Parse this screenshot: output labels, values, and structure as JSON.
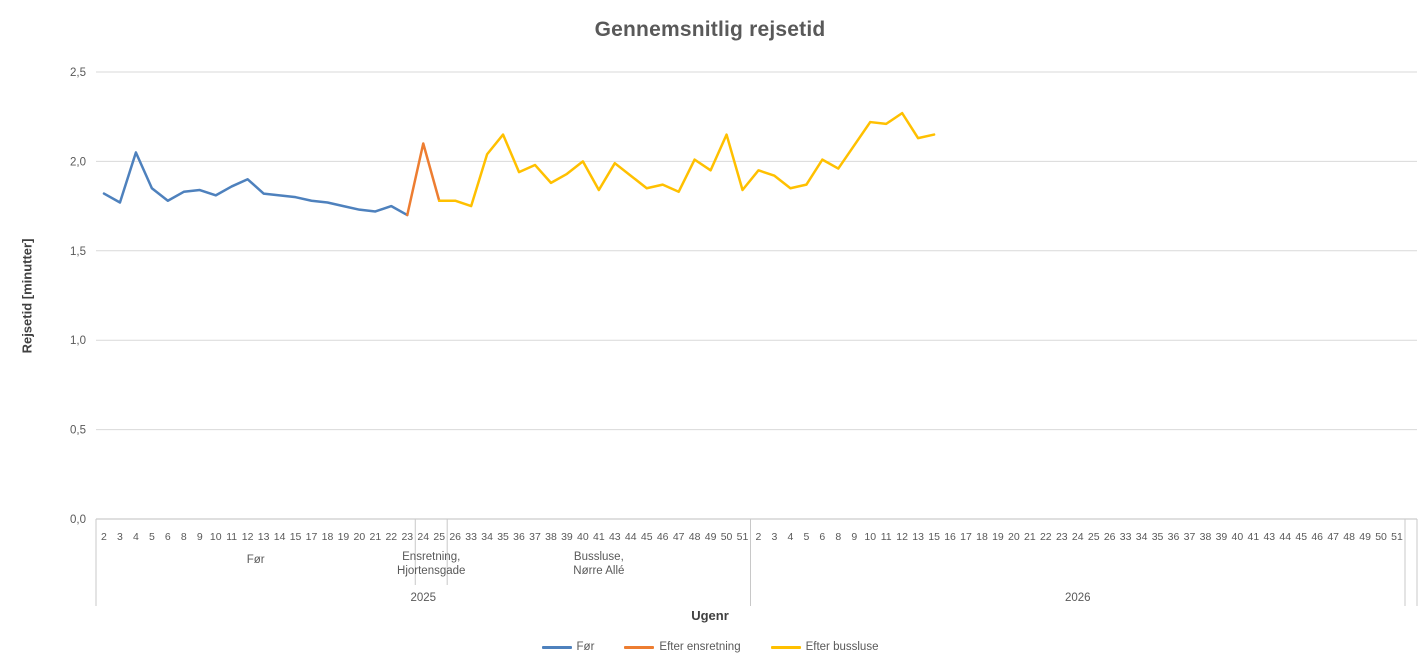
{
  "chart_data": {
    "type": "line",
    "title": "Gennemsnitlig rejsetid",
    "xlabel": "Ugenr",
    "ylabel": "Rejsetid [minutter]",
    "ylim": [
      0,
      2.5
    ],
    "ytick_values": [
      0,
      0.5,
      1.0,
      1.5,
      2.0,
      2.5
    ],
    "ytick_labels": [
      "0,0",
      "0,5",
      "1,0",
      "1,5",
      "2,0",
      "2,5"
    ],
    "grid": true,
    "legend_position": "bottom",
    "categories": [
      2,
      3,
      4,
      5,
      6,
      8,
      9,
      10,
      11,
      12,
      13,
      14,
      15,
      17,
      18,
      19,
      20,
      21,
      22,
      23,
      24,
      25,
      26,
      33,
      34,
      35,
      36,
      37,
      38,
      39,
      40,
      41,
      43,
      44,
      45,
      46,
      47,
      48,
      49,
      50,
      51,
      2,
      3,
      4,
      5,
      6,
      8,
      9,
      10,
      11,
      12,
      13,
      15,
      16,
      17,
      18,
      19,
      20,
      21,
      22,
      23,
      24,
      25,
      26,
      33,
      34,
      35,
      36,
      37,
      38,
      39,
      40,
      41,
      43,
      44,
      45,
      46,
      47,
      48,
      49,
      50,
      51
    ],
    "axis_groups": [
      {
        "lines": [
          "Før"
        ],
        "start_index": 0,
        "end_index": 19
      },
      {
        "lines": [
          "Ensretning,",
          "Hjortensgade"
        ],
        "start_index": 20,
        "end_index": 21
      },
      {
        "lines": [
          "Bussluse,",
          "Nørre Allé"
        ],
        "start_index": 22,
        "end_index": 40
      }
    ],
    "year_groups": [
      {
        "label": "2025",
        "start_index": 0,
        "end_index": 40
      },
      {
        "label": "2026",
        "start_index": 41,
        "end_index": 81
      }
    ],
    "series": [
      {
        "name": "Før",
        "color": "#4E81BD",
        "start_index": 0,
        "values": [
          1.82,
          1.77,
          2.05,
          1.85,
          1.78,
          1.83,
          1.84,
          1.81,
          1.86,
          1.9,
          1.82,
          1.81,
          1.8,
          1.78,
          1.77,
          1.75,
          1.73,
          1.72,
          1.75,
          1.7
        ]
      },
      {
        "name": "Efter ensretning",
        "color": "#ED7D31",
        "start_index": 19,
        "values": [
          1.7,
          2.1,
          1.78
        ]
      },
      {
        "name": "Efter bussluse",
        "color": "#FFC000",
        "start_index": 21,
        "values": [
          1.78,
          1.78,
          1.75,
          2.04,
          2.15,
          1.94,
          1.98,
          1.88,
          1.93,
          2.0,
          1.84,
          1.99,
          1.92,
          1.85,
          1.87,
          1.83,
          2.01,
          1.95,
          2.15,
          1.84,
          1.95,
          1.92,
          1.85,
          1.87,
          2.01,
          1.96,
          2.09,
          2.22,
          2.21,
          2.27,
          2.13,
          2.15
        ]
      }
    ],
    "colors": {
      "gridline": "#D9D9D9",
      "axis_line": "#BFBFBF",
      "separator": "#C8C8C8",
      "tick_text": "#595959",
      "title_text": "#595959"
    }
  }
}
